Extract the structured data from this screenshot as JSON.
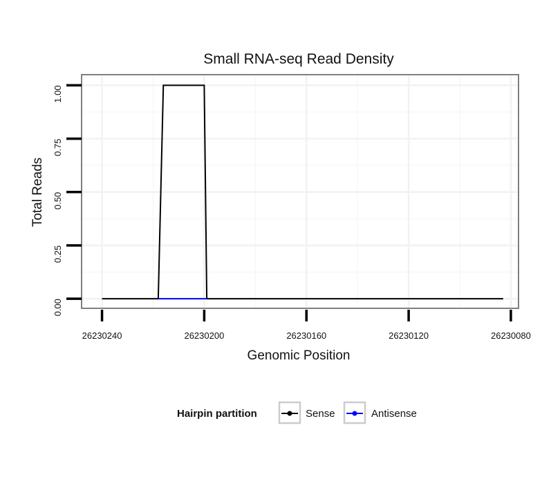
{
  "chart_data": {
    "type": "line",
    "title": "Small RNA-seq Read Density",
    "xlabel": "Genomic Position",
    "ylabel": "Total Reads",
    "x_reversed": true,
    "xlim": [
      26230248,
      26230077
    ],
    "ylim": [
      -0.045,
      1.05
    ],
    "x_ticks": [
      26230240,
      26230200,
      26230160,
      26230120,
      26230080
    ],
    "x_tick_labels": [
      "26230240",
      "26230200",
      "26230160",
      "26230120",
      "26230080"
    ],
    "y_ticks": [
      0,
      0.25,
      0.5,
      0.75,
      1.0
    ],
    "y_tick_labels": [
      "0.00",
      "0.25",
      "0.50",
      "0.75",
      "1.00"
    ],
    "grid": true,
    "legend": {
      "title": "Hairpin partition",
      "position": "bottom",
      "entries": [
        {
          "name": "Sense",
          "color": "#000000"
        },
        {
          "name": "Antisense",
          "color": "#0000ff"
        }
      ]
    },
    "series": [
      {
        "name": "Sense",
        "color": "#000000",
        "x": [
          26230240,
          26230218,
          26230216,
          26230200,
          26230199,
          26230083
        ],
        "y": [
          0,
          0,
          1,
          1,
          0,
          0
        ]
      },
      {
        "name": "Antisense",
        "color": "#0000ff",
        "x": [
          26230218,
          26230199
        ],
        "y": [
          0,
          0
        ]
      }
    ]
  }
}
